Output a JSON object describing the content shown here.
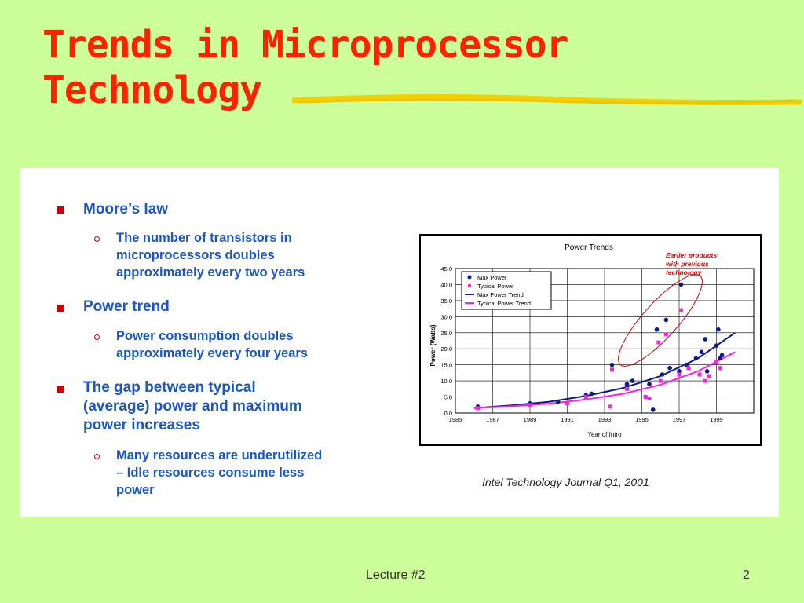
{
  "slide": {
    "title_line1": "Trends in Microprocessor",
    "title_line2": "Technology",
    "footer_label": "Lecture #2",
    "page_number": "2",
    "title_color": "#ff2200",
    "background": "#ccff99",
    "accent_rule_color": "#f5d000"
  },
  "bullets": [
    {
      "text": "Moore’s law",
      "sub": [
        "The number of transistors in",
        "microprocessors doubles",
        "approximately every two years"
      ]
    },
    {
      "text": "Power trend",
      "sub": [
        "Power consumption doubles",
        "approximately every four years"
      ]
    },
    {
      "text_lines": [
        "The gap between typical",
        "(average) power and maximum",
        "power increases"
      ],
      "sub": [
        "Many resources are underutilized",
        "– Idle resources consume less",
        "power"
      ]
    }
  ],
  "caption": "Intel Technology Journal Q1, 2001",
  "chart_data": {
    "type": "scatter",
    "title": "Power Trends",
    "xlabel": "Year of Intro",
    "ylabel": "Power (Watts)",
    "xlim": [
      1985,
      2001
    ],
    "ylim": [
      0,
      45
    ],
    "x_ticks": [
      "1985",
      "1987",
      "1989",
      "1991",
      "1993",
      "1995",
      "1997",
      "1999"
    ],
    "x_tick_values": [
      1985,
      1987,
      1989,
      1991,
      1993,
      1995,
      1997,
      1999
    ],
    "y_ticks": [
      "45.0",
      "40.0",
      "35.0",
      "30.0",
      "25.0",
      "20.0",
      "15.0",
      "10.0",
      "5.0",
      "0.0"
    ],
    "y_tick_values": [
      45,
      40,
      35,
      30,
      25,
      20,
      15,
      10,
      5,
      0
    ],
    "grid": true,
    "legend": "top-left",
    "annotation": "Earlier products with previous technology",
    "annotation_color": "#e00000",
    "series": [
      {
        "name": "Max Power",
        "kind": "points",
        "color": "#0a1a8a",
        "x": [
          1986.2,
          1989.0,
          1990.5,
          1992.0,
          1992.3,
          1993.4,
          1994.2,
          1994.5,
          1995.2,
          1995.4,
          1995.6,
          1995.8,
          1996.1,
          1996.3,
          1996.5,
          1997.0,
          1997.1,
          1997.4,
          1997.9,
          1998.2,
          1998.4,
          1998.5,
          1999.0,
          1999.1,
          1999.2,
          1999.3
        ],
        "y": [
          2.0,
          3.0,
          3.5,
          5.5,
          6.0,
          15.0,
          9.0,
          10.0,
          5.0,
          9.0,
          1.0,
          26.0,
          12.0,
          29.0,
          14.0,
          13.0,
          40.0,
          15.0,
          17.0,
          19.0,
          23.0,
          13.0,
          21.0,
          26.0,
          17.0,
          18.0
        ]
      },
      {
        "name": "Typical Power",
        "kind": "points",
        "color": "#ff22dd",
        "x": [
          1986.2,
          1989.0,
          1991.0,
          1992.0,
          1993.3,
          1993.4,
          1994.2,
          1995.2,
          1995.4,
          1995.9,
          1996.0,
          1996.3,
          1997.0,
          1997.1,
          1997.5,
          1998.1,
          1998.4,
          1998.6,
          1999.0,
          1999.2
        ],
        "y": [
          1.5,
          2.5,
          3.0,
          5.0,
          2.0,
          13.5,
          7.5,
          5.0,
          4.5,
          22.0,
          10.0,
          24.5,
          12.0,
          32.0,
          14.0,
          12.0,
          10.0,
          11.5,
          16.0,
          14.0
        ]
      },
      {
        "name": "Max Power Trend",
        "kind": "line",
        "color": "#0a1a8a",
        "x": [
          1986,
          1988,
          1990,
          1992,
          1994,
          1996,
          1998,
          2000
        ],
        "y": [
          1.5,
          2.4,
          3.5,
          5.3,
          7.8,
          11.5,
          17.0,
          25.0
        ]
      },
      {
        "name": "Typical Power Trend",
        "kind": "line",
        "color": "#ff22dd",
        "x": [
          1986,
          1988,
          1990,
          1992,
          1994,
          1996,
          1998,
          2000
        ],
        "y": [
          1.5,
          2.1,
          2.9,
          4.2,
          6.0,
          8.8,
          13.0,
          19.0
        ]
      }
    ]
  }
}
